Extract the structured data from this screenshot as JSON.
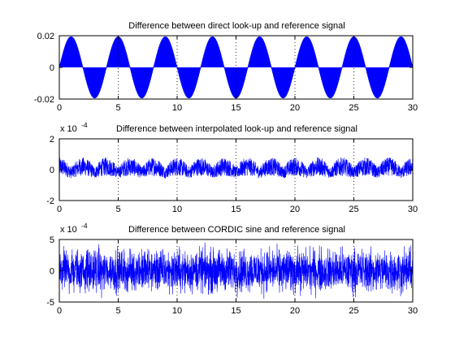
{
  "figure": {
    "background": "#ffffff",
    "axes_color": "#000000",
    "series_color": "#0000ff"
  },
  "chart_data": [
    {
      "type": "line",
      "title": "Difference between direct look-up and reference signal",
      "xlabel": "",
      "ylabel": "",
      "xlim": [
        0,
        30
      ],
      "ylim": [
        -0.02,
        0.02
      ],
      "xticks": [
        0,
        5,
        10,
        15,
        20,
        25,
        30
      ],
      "xtick_labels": [
        "0",
        "5",
        "10",
        "15",
        "20",
        "25",
        "30"
      ],
      "yticks": [
        -0.02,
        0,
        0.02
      ],
      "ytick_labels": [
        "-0.02",
        "0",
        "0.02"
      ],
      "exponent_label": "",
      "grid": "x-dotted",
      "series": [
        {
          "color": "#0000ff",
          "description_values": {
            "envelope_amplitude": 0.0195,
            "envelope_period": 4,
            "signal": "dense sawtooth-filled band between 0 and ±envelope"
          }
        }
      ]
    },
    {
      "type": "line",
      "title": "Difference between interpolated look-up and reference signal",
      "xlabel": "",
      "ylabel": "",
      "xlim": [
        0,
        30
      ],
      "ylim": [
        -0.0002,
        0.0002
      ],
      "xticks": [
        0,
        5,
        10,
        15,
        20,
        25,
        30
      ],
      "xtick_labels": [
        "0",
        "5",
        "10",
        "15",
        "20",
        "25",
        "30"
      ],
      "yticks": [
        -0.0002,
        0,
        0.0002
      ],
      "ytick_labels": [
        "-2",
        "0",
        "2"
      ],
      "exponent_label": "x 10",
      "exponent_power": "-4",
      "grid": "x-dotted",
      "series": [
        {
          "color": "#0000ff",
          "description_values": {
            "bias_amplitude": 4e-05,
            "noise_amplitude": 6e-05,
            "period": 4
          }
        }
      ]
    },
    {
      "type": "line",
      "title": "Difference between CORDIC sine and reference signal",
      "xlabel": "",
      "ylabel": "",
      "xlim": [
        0,
        30
      ],
      "ylim": [
        -0.0005,
        0.0005
      ],
      "xticks": [
        0,
        5,
        10,
        15,
        20,
        25,
        30
      ],
      "xtick_labels": [
        "0",
        "5",
        "10",
        "15",
        "20",
        "25",
        "30"
      ],
      "yticks": [
        -0.0005,
        0,
        0.0005
      ],
      "ytick_labels": [
        "-5",
        "0",
        "5"
      ],
      "exponent_label": "x 10",
      "exponent_power": "-4",
      "grid": "x-dotted",
      "series": [
        {
          "color": "#0000ff",
          "description_values": {
            "noise_amplitude": 0.00049,
            "mean": 0
          }
        }
      ]
    }
  ]
}
